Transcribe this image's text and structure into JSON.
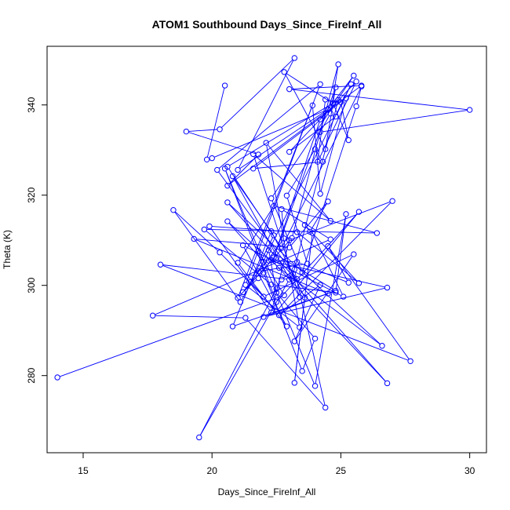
{
  "chart_data": {
    "type": "line",
    "title": "ATOM1 Southbound Days_Since_FireInf_All",
    "xlabel": "Days_Since_FireInf_All",
    "ylabel": "Theta (K)",
    "xlim": [
      13.6,
      30.65
    ],
    "ylim": [
      262.9,
      353.0
    ],
    "xticks": [
      15,
      20,
      25,
      30
    ],
    "yticks": [
      280,
      300,
      320,
      340
    ],
    "grid": false,
    "legend": "none",
    "marker": "open-circle",
    "color": "#0000ff",
    "series": [
      {
        "x": [
          14.0,
          22.8,
          21.8,
          22.0,
          23.5,
          24.0,
          22.5,
          22.2,
          24.8,
          22.0,
          26.8,
          22.2,
          23.3,
          25.3,
          24.5,
          27.7,
          18.0,
          23.0,
          19.5,
          22.5,
          22.7,
          23.2,
          24.4,
          21.3,
          17.7,
          24.6,
          22.7,
          22.8,
          21.2,
          21.8,
          22.3,
          26.8,
          22.5,
          20.6,
          26.6,
          22.6,
          20.6,
          22.0,
          21.1,
          18.5,
          20.3,
          22.0,
          25.5,
          23.2,
          24.2,
          22.6,
          27.0,
          23.0,
          22.3,
          19.9,
          23.3,
          25.7,
          23.6,
          23.8,
          24.5,
          23.0,
          19.3,
          24.5,
          20.8,
          22.3,
          23.6,
          23.2,
          23.9,
          25.1,
          21.2,
          22.9,
          21.0,
          22.4,
          26.4,
          19.7,
          22.3,
          24.8,
          25.2,
          24.0,
          20.5,
          22.5,
          25.7,
          22.5,
          21.5,
          22.4,
          20.8,
          23.4,
          21.6,
          24.6,
          22.1,
          23.4,
          21.3,
          24.2,
          20.2,
          23.3,
          23.1,
          24.9,
          20.6,
          22.7,
          25.8,
          25.6,
          23.5,
          22.3,
          25.5,
          24.2,
          22.4,
          24.8,
          24.4,
          22.8,
          24.7,
          25.3,
          25.0,
          24.4,
          24.1,
          25.6,
          23.0,
          24.8,
          25.4,
          21.8,
          23.7,
          22.9,
          24.0,
          24.3,
          21.6,
          25.2,
          24.2,
          23.9,
          21.0,
          23.1,
          24.9,
          24.6,
          24.2,
          30.0,
          23.0,
          25.8,
          20.6,
          21.8,
          19.0,
          20.3,
          23.2,
          21.0,
          24.5,
          20.0,
          19.8,
          20.5
        ],
        "y": [
          279.6,
          297.8,
          307.6,
          302.8,
          281.0,
          288.2,
          298.4,
          307.8,
          298.8,
          293.0,
          299.5,
          305.5,
          305.2,
          300.6,
          308.7,
          283.2,
          304.6,
          301.3,
          266.3,
          299.2,
          301.3,
          303.5,
          272.9,
          292.8,
          293.3,
          310.2,
          316.9,
          310.4,
          298.5,
          301.6,
          305.6,
          278.3,
          306.2,
          318.4,
          286.6,
          303.9,
          314.2,
          305.2,
          296.3,
          316.7,
          307.3,
          297.5,
          306.9,
          287.6,
          300.1,
          293.4,
          318.7,
          310.0,
          294.0,
          313.1,
          311.8,
          300.5,
          313.4,
          311.9,
          318.6,
          308.4,
          310.3,
          298.2,
          290.9,
          312.0,
          297.3,
          278.4,
          311.6,
          297.5,
          308.9,
          290.9,
          305.0,
          317.6,
          311.6,
          312.4,
          300.2,
          298.4,
          315.8,
          277.7,
          325.9,
          296.3,
          316.3,
          294.2,
          300.8,
          311.1,
          324.2,
          297.4,
          329.1,
          314.3,
          331.6,
          290.7,
          300.1,
          344.6,
          325.6,
          301.4,
          301.5,
          341.1,
          326.3,
          308.3,
          344.1,
          339.7,
          302.9,
          319.3,
          346.5,
          336.8,
          306.2,
          343.9,
          330.2,
          347.3,
          340.3,
          332.2,
          340.6,
          341.2,
          327.4,
          345.2,
          329.6,
          337.4,
          344.6,
          303.1,
          304.8,
          319.9,
          330.2,
          327.4,
          325.9,
          341.5,
          320.3,
          339.9,
          297.2,
          310.5,
          349.0,
          338.1,
          334.0,
          338.9,
          343.5,
          344.3,
          322.1,
          329.0,
          334.1,
          334.6,
          350.4,
          325.6,
          339.0,
          328.2,
          327.9,
          344.3
        ]
      }
    ]
  }
}
